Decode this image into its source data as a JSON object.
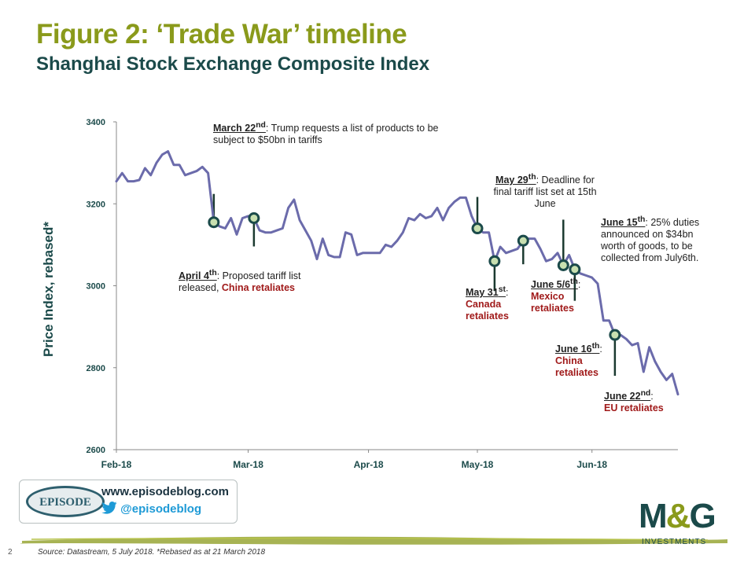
{
  "title": "Figure 2: ‘Trade War’ timeline",
  "subtitle": "Shanghai Stock Exchange Composite Index",
  "colors": {
    "series": "#6b6bab",
    "accent": "#8a9a1b",
    "dark": "#1b4a4a",
    "retaliate": "#a01a1a",
    "marker": "#1b4a4a",
    "marker_fill": "#c8e0b0"
  },
  "chart_data": {
    "type": "line",
    "title": "",
    "xlabel": "",
    "ylabel": "Price Index, rebased*",
    "ylim": [
      2600,
      3400
    ],
    "yticks": [
      "3400",
      "3200",
      "3000",
      "2800",
      "2600"
    ],
    "xticks": [
      "Feb-18",
      "Mar-18",
      "Apr-18",
      "May-18",
      "Jun-18"
    ],
    "grid": false,
    "series": [
      {
        "values": [
          3255,
          3275,
          3255,
          3255,
          3258,
          3287,
          3270,
          3300,
          3320,
          3328,
          3295,
          3295,
          3270,
          3275,
          3280,
          3290,
          3275,
          3155,
          3145,
          3140,
          3165,
          3125,
          3165,
          3170,
          3165,
          3135,
          3130,
          3130,
          3135,
          3140,
          3190,
          3210,
          3160,
          3135,
          3110,
          3065,
          3115,
          3075,
          3070,
          3070,
          3130,
          3125,
          3075,
          3080,
          3080,
          3080,
          3080,
          3100,
          3095,
          3110,
          3130,
          3165,
          3160,
          3175,
          3165,
          3170,
          3190,
          3160,
          3190,
          3205,
          3215,
          3215,
          3170,
          3140,
          3130,
          3130,
          3060,
          3095,
          3080,
          3085,
          3090,
          3110,
          3115,
          3115,
          3090,
          3060,
          3065,
          3080,
          3050,
          3075,
          3040,
          3030,
          3025,
          3020,
          3005,
          2915,
          2915,
          2880,
          2880,
          2870,
          2855,
          2860,
          2790,
          2850,
          2815,
          2790,
          2770,
          2785,
          2735
        ]
      }
    ],
    "events": [
      {
        "date": "March 22",
        "sup": "nd",
        "text": ": Trump requests a list of products to be subject to $50bn in tariffs",
        "retaliation": ""
      },
      {
        "date": "April 4",
        "sup": "th",
        "text": ": Proposed tariff list released, ",
        "retaliation": "China retaliates"
      },
      {
        "date": "May 29",
        "sup": "th",
        "text": ": Deadline for final tariff list set at 15th June",
        "retaliation": ""
      },
      {
        "date": "May 31",
        "sup": "st",
        "text": ":",
        "retaliation": "Canada retaliates"
      },
      {
        "date": "June 5/6",
        "sup": "th",
        "text": ":",
        "retaliation": "Mexico retaliates"
      },
      {
        "date": "June 15",
        "sup": "th",
        "text": ": 25% duties announced on $34bn worth of goods, to be collected from July6th.",
        "retaliation": ""
      },
      {
        "date": "June 16",
        "sup": "th",
        "text": ":",
        "retaliation": "China retaliates"
      },
      {
        "date": "June 22",
        "sup": "nd",
        "text": ":",
        "retaliation": "EU retaliates"
      }
    ]
  },
  "footer": {
    "episode_logo": "EPISODE",
    "url": "www.episodeblog.com",
    "twitter": "@episodeblog",
    "company_logo": "M&G",
    "company_logo_sub": "INVESTMENTS",
    "page_number": "2",
    "source": "Source: Datastream, 5 July 2018. *Rebased as at 21 March 2018"
  }
}
